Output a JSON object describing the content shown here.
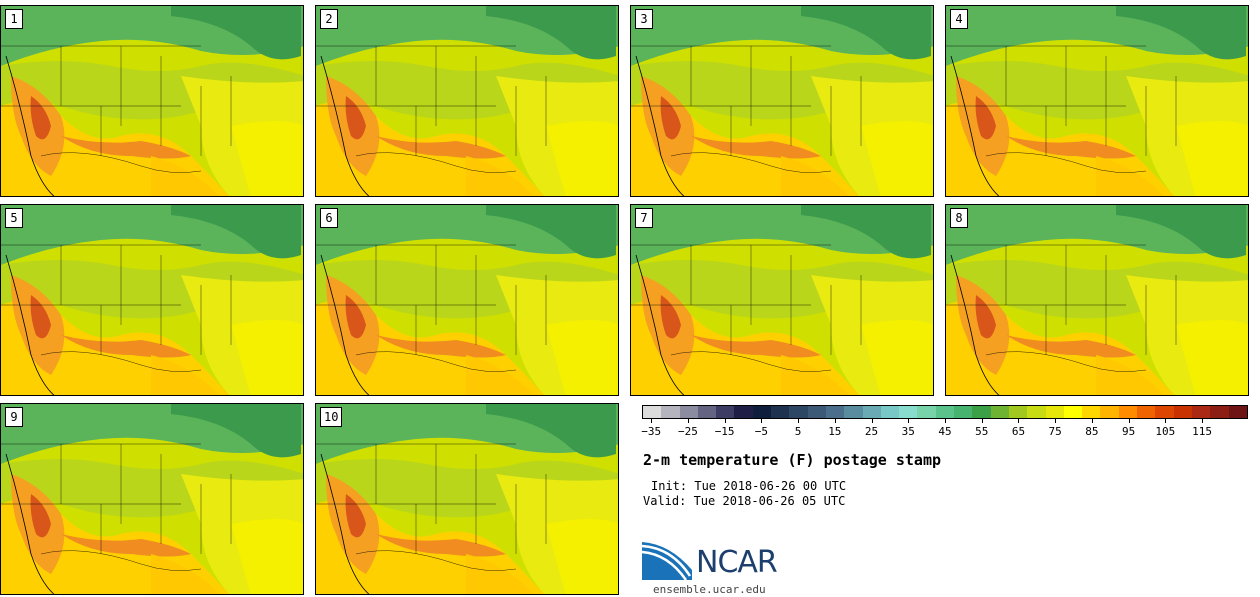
{
  "stamps": [
    {
      "label": "1"
    },
    {
      "label": "2"
    },
    {
      "label": "3"
    },
    {
      "label": "4"
    },
    {
      "label": "5"
    },
    {
      "label": "6"
    },
    {
      "label": "7"
    },
    {
      "label": "8"
    },
    {
      "label": "9"
    },
    {
      "label": "10"
    }
  ],
  "legend": {
    "colors": [
      "#dcdcdc",
      "#b4b4be",
      "#8c8ca0",
      "#646482",
      "#3c3c64",
      "#1e1e46",
      "#0f1e3c",
      "#1e3250",
      "#2d4664",
      "#3c5a78",
      "#4b6e8c",
      "#5a8ca0",
      "#69aab4",
      "#78c8c8",
      "#87dccd",
      "#78d2aa",
      "#5ac38c",
      "#46b46e",
      "#3ca046",
      "#6eb432",
      "#a0c81e",
      "#c8dc14",
      "#e6e60a",
      "#ffff00",
      "#ffd700",
      "#ffb400",
      "#ff8c00",
      "#f06400",
      "#dc4600",
      "#c83200",
      "#aa2814",
      "#8c1e14",
      "#6e1414"
    ],
    "ticks": [
      "−35",
      "−25",
      "−15",
      "−5",
      "5",
      "15",
      "25",
      "35",
      "45",
      "55",
      "65",
      "75",
      "85",
      "95",
      "105",
      "115"
    ]
  },
  "title": "2-m temperature (F) postage stamp",
  "init": "Init: Tue 2018-06-26 00 UTC",
  "valid": "Valid: Tue 2018-06-26 05 UTC",
  "logo": {
    "name": "NCAR",
    "url_text": "ensemble.ucar.edu"
  }
}
